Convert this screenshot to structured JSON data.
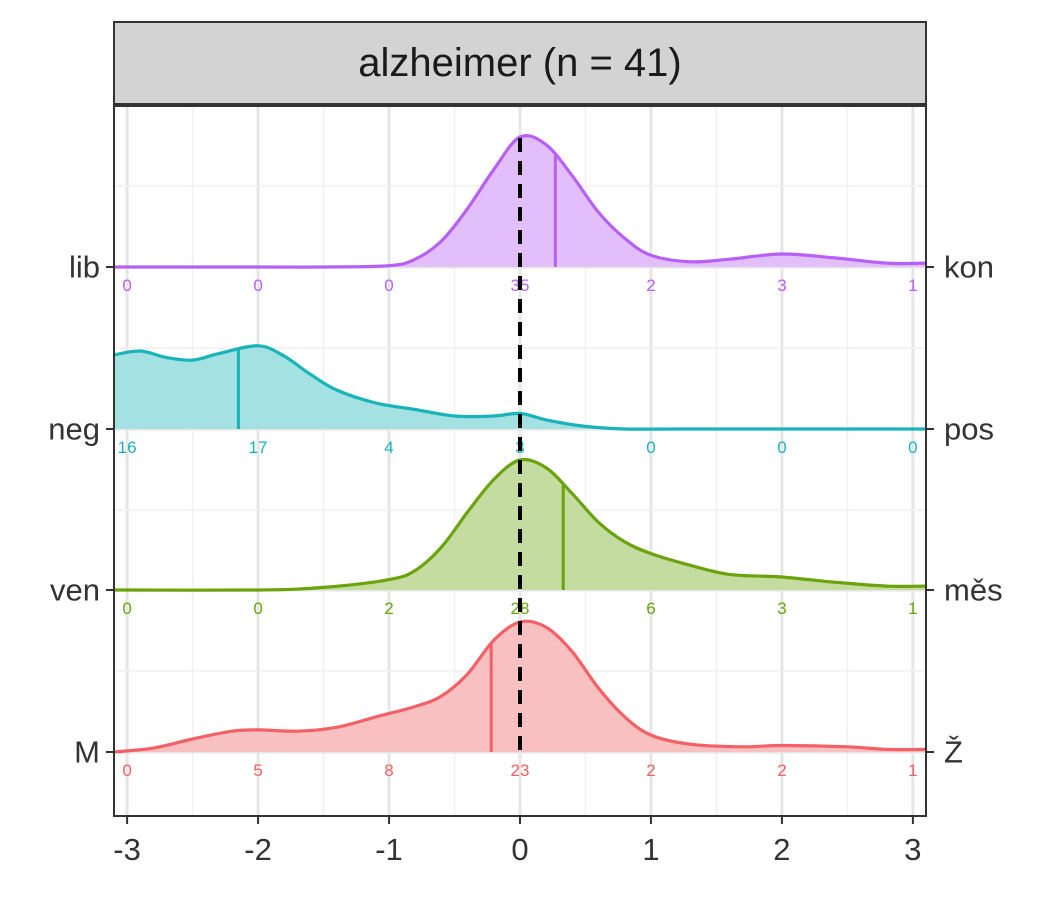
{
  "chart_data": {
    "type": "area",
    "title": "alzheimer (n = 41)",
    "xlim": [
      -3.1,
      3.1
    ],
    "x_ticks": [
      -3,
      -2,
      -1,
      0,
      1,
      2,
      3
    ],
    "x_tick_labels": [
      "-3",
      "-2",
      "-1",
      "0",
      "1",
      "2",
      "3"
    ],
    "grid": true,
    "reference_line_x": 0,
    "count_positions": [
      -3,
      -2,
      -1,
      0,
      1,
      2,
      3
    ],
    "series": [
      {
        "left_label": "lib",
        "right_label": "kon",
        "color": "#b760f5",
        "fill": "#e2bffb",
        "counts": [
          "0",
          "0",
          "0",
          "35",
          "2",
          "3",
          "1"
        ],
        "mean": 0.27,
        "density_x": [
          -3.1,
          -2.0,
          -1.5,
          -1.0,
          -0.8,
          -0.6,
          -0.4,
          -0.2,
          0.0,
          0.2,
          0.4,
          0.6,
          0.8,
          1.0,
          1.3,
          1.6,
          2.0,
          2.4,
          2.8,
          3.1
        ],
        "density_y": [
          0.0,
          0.0,
          0.0,
          0.01,
          0.06,
          0.2,
          0.45,
          0.75,
          1.0,
          0.94,
          0.7,
          0.42,
          0.22,
          0.09,
          0.04,
          0.06,
          0.1,
          0.07,
          0.03,
          0.03
        ]
      },
      {
        "left_label": "neg",
        "right_label": "pos",
        "color": "#19b4b9",
        "fill": "#a3e1e3",
        "counts": [
          "16",
          "17",
          "4",
          "3",
          "0",
          "0",
          "0"
        ],
        "mean": -2.15,
        "density_x": [
          -3.1,
          -2.9,
          -2.7,
          -2.5,
          -2.3,
          -2.0,
          -1.8,
          -1.6,
          -1.4,
          -1.1,
          -0.8,
          -0.5,
          -0.2,
          0.0,
          0.2,
          0.5,
          0.8,
          1.2,
          2.0,
          3.1
        ],
        "density_y": [
          0.57,
          0.6,
          0.55,
          0.53,
          0.58,
          0.64,
          0.56,
          0.42,
          0.3,
          0.2,
          0.15,
          0.1,
          0.1,
          0.12,
          0.07,
          0.02,
          0.0,
          0.0,
          0.0,
          0.0
        ]
      },
      {
        "left_label": "ven",
        "right_label": "měs",
        "color": "#6aa30c",
        "fill": "#c4dc9f",
        "counts": [
          "0",
          "0",
          "2",
          "28",
          "6",
          "3",
          "1"
        ],
        "mean": 0.33,
        "density_x": [
          -3.1,
          -2.0,
          -1.5,
          -1.0,
          -0.8,
          -0.6,
          -0.4,
          -0.2,
          0.0,
          0.2,
          0.4,
          0.6,
          0.8,
          1.0,
          1.3,
          1.6,
          2.0,
          2.4,
          2.8,
          3.1
        ],
        "density_y": [
          0.0,
          0.0,
          0.02,
          0.08,
          0.15,
          0.33,
          0.6,
          0.85,
          1.0,
          0.94,
          0.74,
          0.52,
          0.37,
          0.28,
          0.19,
          0.12,
          0.1,
          0.06,
          0.03,
          0.03
        ]
      },
      {
        "left_label": "M",
        "right_label": "Ž",
        "color": "#f36066",
        "fill": "#f8c0c0",
        "counts": [
          "0",
          "5",
          "8",
          "23",
          "2",
          "2",
          "1"
        ],
        "mean": -0.22,
        "density_x": [
          -3.1,
          -2.8,
          -2.5,
          -2.2,
          -2.0,
          -1.7,
          -1.4,
          -1.1,
          -0.8,
          -0.6,
          -0.4,
          -0.2,
          0.0,
          0.2,
          0.4,
          0.6,
          0.8,
          1.0,
          1.3,
          1.7,
          2.0,
          2.5,
          2.8,
          3.1
        ],
        "density_y": [
          0.0,
          0.03,
          0.1,
          0.16,
          0.17,
          0.16,
          0.19,
          0.27,
          0.35,
          0.43,
          0.6,
          0.86,
          1.0,
          0.96,
          0.77,
          0.49,
          0.27,
          0.13,
          0.06,
          0.04,
          0.05,
          0.04,
          0.02,
          0.02
        ]
      }
    ]
  }
}
